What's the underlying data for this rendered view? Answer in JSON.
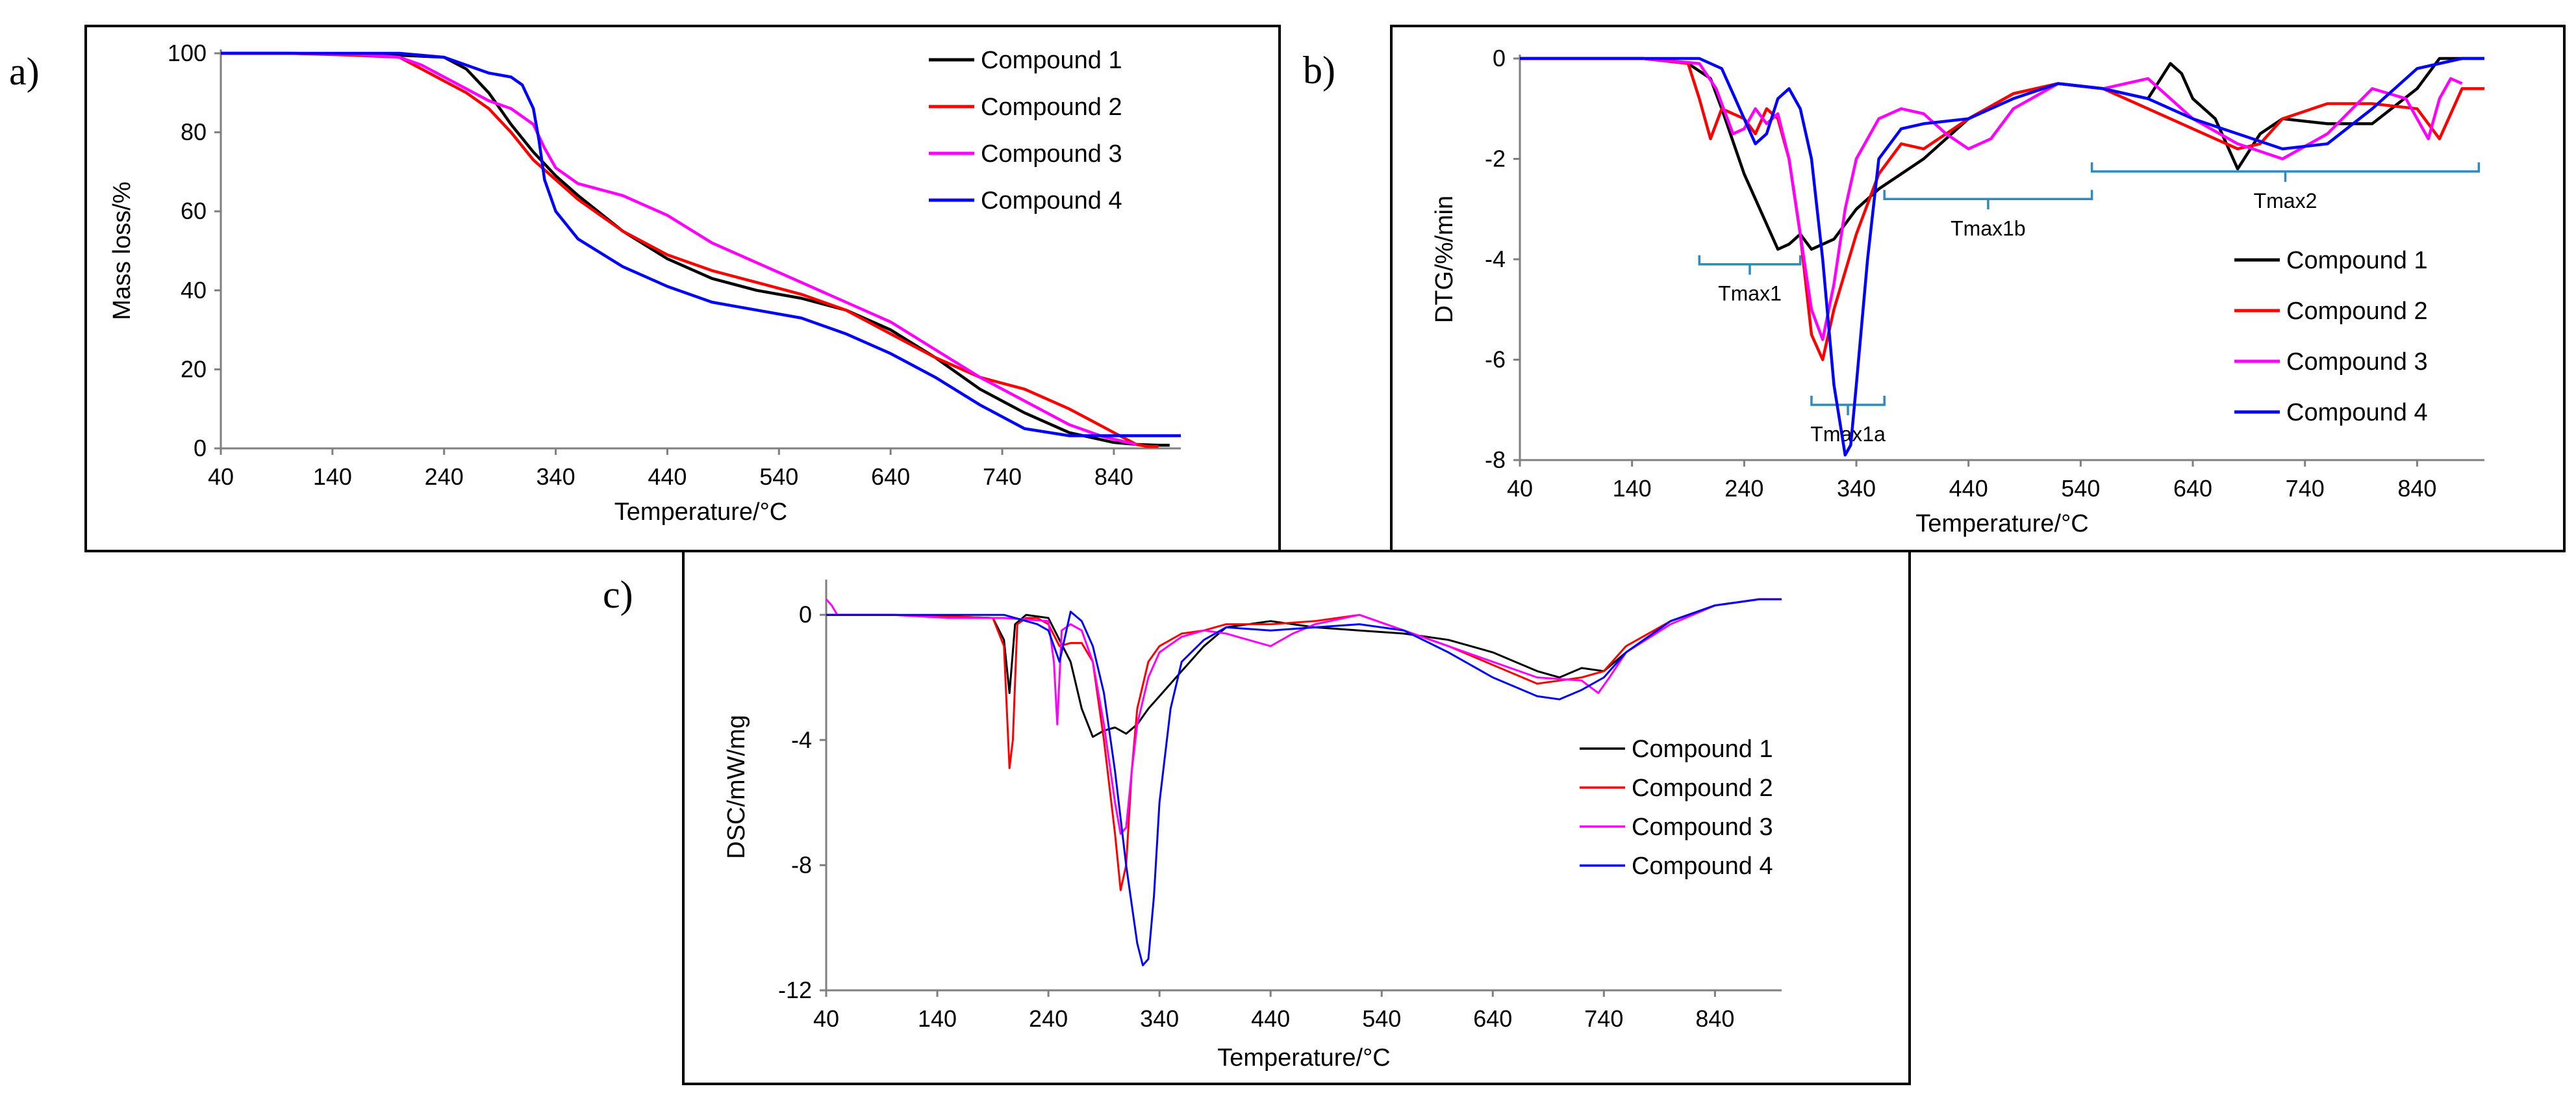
{
  "chart_data": [
    {
      "id": "a",
      "panel_label": "a)",
      "type": "line",
      "title": "",
      "xlabel": "Temperature/°C",
      "ylabel": "Mass loss/%",
      "xlim": [
        40,
        900
      ],
      "ylim": [
        0,
        100
      ],
      "xticks": [
        40,
        140,
        240,
        340,
        440,
        540,
        640,
        740,
        840
      ],
      "yticks": [
        0,
        20,
        40,
        60,
        80,
        100
      ],
      "grid": false,
      "legend": "top-right",
      "series": [
        {
          "name": "Compound 1",
          "color": "#000000",
          "x": [
            40,
            100,
            160,
            200,
            240,
            260,
            280,
            300,
            320,
            340,
            360,
            400,
            440,
            480,
            520,
            560,
            600,
            640,
            680,
            720,
            760,
            800,
            840,
            860,
            880,
            890
          ],
          "y": [
            100,
            100,
            99.8,
            99.5,
            99,
            96,
            90,
            82,
            75,
            69,
            64,
            55,
            48,
            43,
            40,
            38,
            35,
            30,
            23,
            15,
            9,
            4,
            1.5,
            1,
            0.8,
            0.8
          ]
        },
        {
          "name": "Compound 2",
          "color": "#ff0000",
          "x": [
            40,
            100,
            160,
            200,
            220,
            240,
            260,
            280,
            300,
            320,
            340,
            360,
            400,
            440,
            480,
            520,
            560,
            600,
            640,
            680,
            720,
            760,
            800,
            820,
            840,
            860,
            870,
            880
          ],
          "y": [
            100,
            100,
            99.5,
            99,
            96,
            93,
            90,
            86,
            80,
            73,
            68,
            63,
            55,
            49,
            45,
            42,
            39,
            35,
            29,
            23,
            18,
            15,
            10,
            7,
            4,
            1,
            0.5,
            0.5
          ]
        },
        {
          "name": "Compound 3",
          "color": "#ff00ff",
          "x": [
            40,
            100,
            160,
            200,
            220,
            240,
            260,
            280,
            300,
            320,
            330,
            340,
            360,
            400,
            440,
            480,
            520,
            560,
            600,
            640,
            680,
            720,
            760,
            800,
            830,
            860
          ],
          "y": [
            100,
            100,
            99.8,
            99,
            97,
            94,
            91,
            88,
            86,
            82,
            76,
            71,
            67,
            64,
            59,
            52,
            47,
            42,
            37,
            32,
            25,
            18,
            12,
            6,
            3,
            1
          ]
        },
        {
          "name": "Compound 4",
          "color": "#0000ff",
          "x": [
            40,
            100,
            160,
            200,
            240,
            260,
            280,
            300,
            310,
            320,
            325,
            330,
            340,
            360,
            400,
            440,
            480,
            520,
            560,
            600,
            640,
            680,
            720,
            760,
            800,
            840,
            880,
            900
          ],
          "y": [
            100,
            100,
            100,
            100,
            99,
            97,
            95,
            94,
            92,
            86,
            78,
            68,
            60,
            53,
            46,
            41,
            37,
            35,
            33,
            29,
            24,
            18,
            11,
            5,
            3.2,
            3.2,
            3.2,
            3.2
          ]
        }
      ]
    },
    {
      "id": "b",
      "panel_label": "b)",
      "type": "line",
      "title": "",
      "xlabel": "Temperature/°C",
      "ylabel": "DTG/%/min",
      "xlim": [
        40,
        900
      ],
      "ylim": [
        -8,
        0
      ],
      "xticks": [
        40,
        140,
        240,
        340,
        440,
        540,
        640,
        740,
        840
      ],
      "yticks": [
        -8,
        -6,
        -4,
        -2,
        0
      ],
      "grid": false,
      "legend": "right",
      "annotations": [
        {
          "text": "Tmax1",
          "x_range": [
            200,
            290
          ],
          "y": -4.1
        },
        {
          "text": "Tmax1a",
          "x_range": [
            300,
            365
          ],
          "y": -6.9
        },
        {
          "text": "Tmax1b",
          "x_range": [
            365,
            550
          ],
          "y": -2.8
        },
        {
          "text": "Tmax2",
          "x_range": [
            550,
            895
          ],
          "y": -2.25
        }
      ],
      "series": [
        {
          "name": "Compound 1",
          "color": "#000000",
          "x": [
            40,
            150,
            190,
            210,
            220,
            240,
            260,
            270,
            280,
            290,
            300,
            320,
            340,
            360,
            400,
            440,
            480,
            520,
            560,
            600,
            620,
            630,
            640,
            660,
            680,
            700,
            720,
            760,
            800,
            840,
            860,
            900
          ],
          "y": [
            0,
            0,
            -0.1,
            -0.4,
            -1.0,
            -2.3,
            -3.3,
            -3.8,
            -3.7,
            -3.5,
            -3.8,
            -3.6,
            -3.0,
            -2.6,
            -2.0,
            -1.2,
            -0.7,
            -0.5,
            -0.6,
            -0.8,
            -0.1,
            -0.3,
            -0.8,
            -1.2,
            -2.2,
            -1.5,
            -1.2,
            -1.3,
            -1.3,
            -0.6,
            0,
            0
          ]
        },
        {
          "name": "Compound 2",
          "color": "#ff0000",
          "x": [
            40,
            150,
            190,
            200,
            210,
            220,
            240,
            250,
            260,
            270,
            280,
            290,
            300,
            310,
            320,
            340,
            360,
            380,
            400,
            440,
            480,
            520,
            560,
            600,
            640,
            680,
            700,
            720,
            760,
            800,
            840,
            860,
            880,
            900
          ],
          "y": [
            0,
            0,
            -0.1,
            -0.8,
            -1.6,
            -1.0,
            -1.2,
            -1.5,
            -1.0,
            -1.2,
            -2.0,
            -3.5,
            -5.5,
            -6.0,
            -5.0,
            -3.5,
            -2.3,
            -1.7,
            -1.8,
            -1.2,
            -0.7,
            -0.5,
            -0.6,
            -1.0,
            -1.4,
            -1.8,
            -1.7,
            -1.2,
            -0.9,
            -0.9,
            -1.0,
            -1.6,
            -0.6,
            -0.6
          ]
        },
        {
          "name": "Compound 3",
          "color": "#ff00ff",
          "x": [
            40,
            150,
            200,
            215,
            230,
            240,
            250,
            260,
            270,
            280,
            290,
            300,
            310,
            320,
            330,
            340,
            360,
            380,
            400,
            420,
            440,
            460,
            480,
            520,
            560,
            600,
            640,
            680,
            720,
            760,
            800,
            830,
            850,
            860,
            870,
            880
          ],
          "y": [
            0,
            0,
            -0.1,
            -0.6,
            -1.5,
            -1.4,
            -1.0,
            -1.3,
            -1.1,
            -2.0,
            -3.5,
            -5.0,
            -5.6,
            -4.5,
            -3.0,
            -2.0,
            -1.2,
            -1.0,
            -1.1,
            -1.5,
            -1.8,
            -1.6,
            -1.0,
            -0.5,
            -0.6,
            -0.4,
            -1.2,
            -1.7,
            -2.0,
            -1.5,
            -0.6,
            -0.8,
            -1.6,
            -0.8,
            -0.4,
            -0.5
          ]
        },
        {
          "name": "Compound 4",
          "color": "#0000ff",
          "x": [
            40,
            150,
            200,
            220,
            230,
            240,
            250,
            260,
            270,
            280,
            290,
            300,
            310,
            320,
            330,
            335,
            340,
            350,
            360,
            380,
            400,
            440,
            480,
            520,
            560,
            600,
            640,
            680,
            720,
            760,
            800,
            840,
            880,
            900
          ],
          "y": [
            0,
            0,
            0,
            -0.2,
            -0.7,
            -1.2,
            -1.7,
            -1.5,
            -0.8,
            -0.6,
            -1.0,
            -2.0,
            -4.0,
            -6.5,
            -7.9,
            -7.7,
            -6.5,
            -4.0,
            -2.0,
            -1.4,
            -1.3,
            -1.2,
            -0.8,
            -0.5,
            -0.6,
            -0.8,
            -1.2,
            -1.5,
            -1.8,
            -1.7,
            -1.0,
            -0.2,
            0,
            0
          ]
        }
      ]
    },
    {
      "id": "c",
      "panel_label": "c)",
      "type": "line",
      "title": "",
      "xlabel": "Temperature/°C",
      "ylabel": "DSC/mW/mg",
      "xlim": [
        40,
        900
      ],
      "ylim": [
        -12,
        1
      ],
      "xticks": [
        40,
        140,
        240,
        340,
        440,
        540,
        640,
        740,
        840
      ],
      "yticks": [
        -12,
        -8,
        -4,
        0
      ],
      "grid": false,
      "legend": "right",
      "series": [
        {
          "name": "Compound 1",
          "color": "#000000",
          "x": [
            40,
            100,
            150,
            190,
            200,
            205,
            210,
            220,
            240,
            260,
            270,
            280,
            290,
            300,
            310,
            320,
            330,
            340,
            360,
            380,
            400,
            440,
            480,
            520,
            560,
            600,
            640,
            680,
            700,
            720,
            740,
            760,
            800,
            840,
            880,
            900
          ],
          "y": [
            0,
            0,
            -0.05,
            -0.1,
            -0.8,
            -2.5,
            -0.3,
            0,
            -0.1,
            -1.5,
            -3.0,
            -3.9,
            -3.7,
            -3.6,
            -3.8,
            -3.5,
            -3.0,
            -2.6,
            -1.8,
            -1.0,
            -0.4,
            -0.2,
            -0.4,
            -0.5,
            -0.6,
            -0.8,
            -1.2,
            -1.8,
            -2.0,
            -1.7,
            -1.8,
            -1.2,
            -0.2,
            0.3,
            0.5,
            0.5
          ]
        },
        {
          "name": "Compound 2",
          "color": "#ff0000",
          "x": [
            40,
            100,
            150,
            190,
            200,
            205,
            208,
            212,
            220,
            230,
            240,
            250,
            260,
            270,
            280,
            290,
            300,
            305,
            310,
            315,
            320,
            330,
            340,
            360,
            380,
            400,
            440,
            480,
            520,
            560,
            600,
            640,
            680,
            700,
            720,
            740,
            760,
            800,
            840,
            880,
            900
          ],
          "y": [
            0,
            0,
            -0.05,
            -0.1,
            -1.0,
            -4.9,
            -4.0,
            -0.3,
            -0.1,
            -0.1,
            -0.3,
            -1.0,
            -0.9,
            -0.9,
            -1.5,
            -4.0,
            -7.0,
            -8.8,
            -8.0,
            -5.0,
            -3.0,
            -1.5,
            -1.0,
            -0.6,
            -0.5,
            -0.3,
            -0.3,
            -0.2,
            0,
            -0.5,
            -1.0,
            -1.6,
            -2.2,
            -2.1,
            -2.0,
            -1.8,
            -1.0,
            -0.2,
            0.3,
            0.5,
            0.5
          ]
        },
        {
          "name": "Compound 3",
          "color": "#ff00ff",
          "x": [
            40,
            45,
            50,
            100,
            150,
            200,
            240,
            245,
            248,
            252,
            260,
            270,
            280,
            290,
            300,
            305,
            310,
            315,
            320,
            330,
            340,
            360,
            380,
            400,
            420,
            440,
            460,
            480,
            520,
            560,
            600,
            640,
            680,
            720,
            735,
            745,
            760,
            800,
            840,
            880,
            900
          ],
          "y": [
            0.5,
            0.3,
            0,
            0,
            -0.1,
            -0.1,
            -0.2,
            -1.5,
            -3.5,
            -0.5,
            -0.3,
            -0.5,
            -1.5,
            -3.5,
            -6.0,
            -7.0,
            -6.8,
            -5.0,
            -3.5,
            -2.0,
            -1.2,
            -0.7,
            -0.5,
            -0.6,
            -0.8,
            -1.0,
            -0.6,
            -0.3,
            0,
            -0.5,
            -1.0,
            -1.5,
            -2.0,
            -2.1,
            -2.5,
            -2.0,
            -1.2,
            -0.3,
            0.3,
            0.5,
            0.5
          ]
        },
        {
          "name": "Compound 4",
          "color": "#0000ff",
          "x": [
            40,
            100,
            150,
            200,
            230,
            240,
            250,
            260,
            270,
            280,
            290,
            300,
            310,
            320,
            325,
            330,
            335,
            340,
            350,
            360,
            380,
            400,
            440,
            480,
            520,
            560,
            600,
            640,
            680,
            700,
            720,
            740,
            760,
            800,
            840,
            880,
            900
          ],
          "y": [
            0,
            0,
            0,
            0,
            -0.3,
            -0.5,
            -1.5,
            0.1,
            -0.2,
            -1.0,
            -2.5,
            -5.0,
            -8.0,
            -10.5,
            -11.2,
            -11.0,
            -9.0,
            -6.0,
            -3.0,
            -1.5,
            -0.8,
            -0.4,
            -0.5,
            -0.4,
            -0.3,
            -0.5,
            -1.2,
            -2.0,
            -2.6,
            -2.7,
            -2.4,
            -2.0,
            -1.2,
            -0.2,
            0.3,
            0.5,
            0.5
          ]
        }
      ]
    }
  ]
}
